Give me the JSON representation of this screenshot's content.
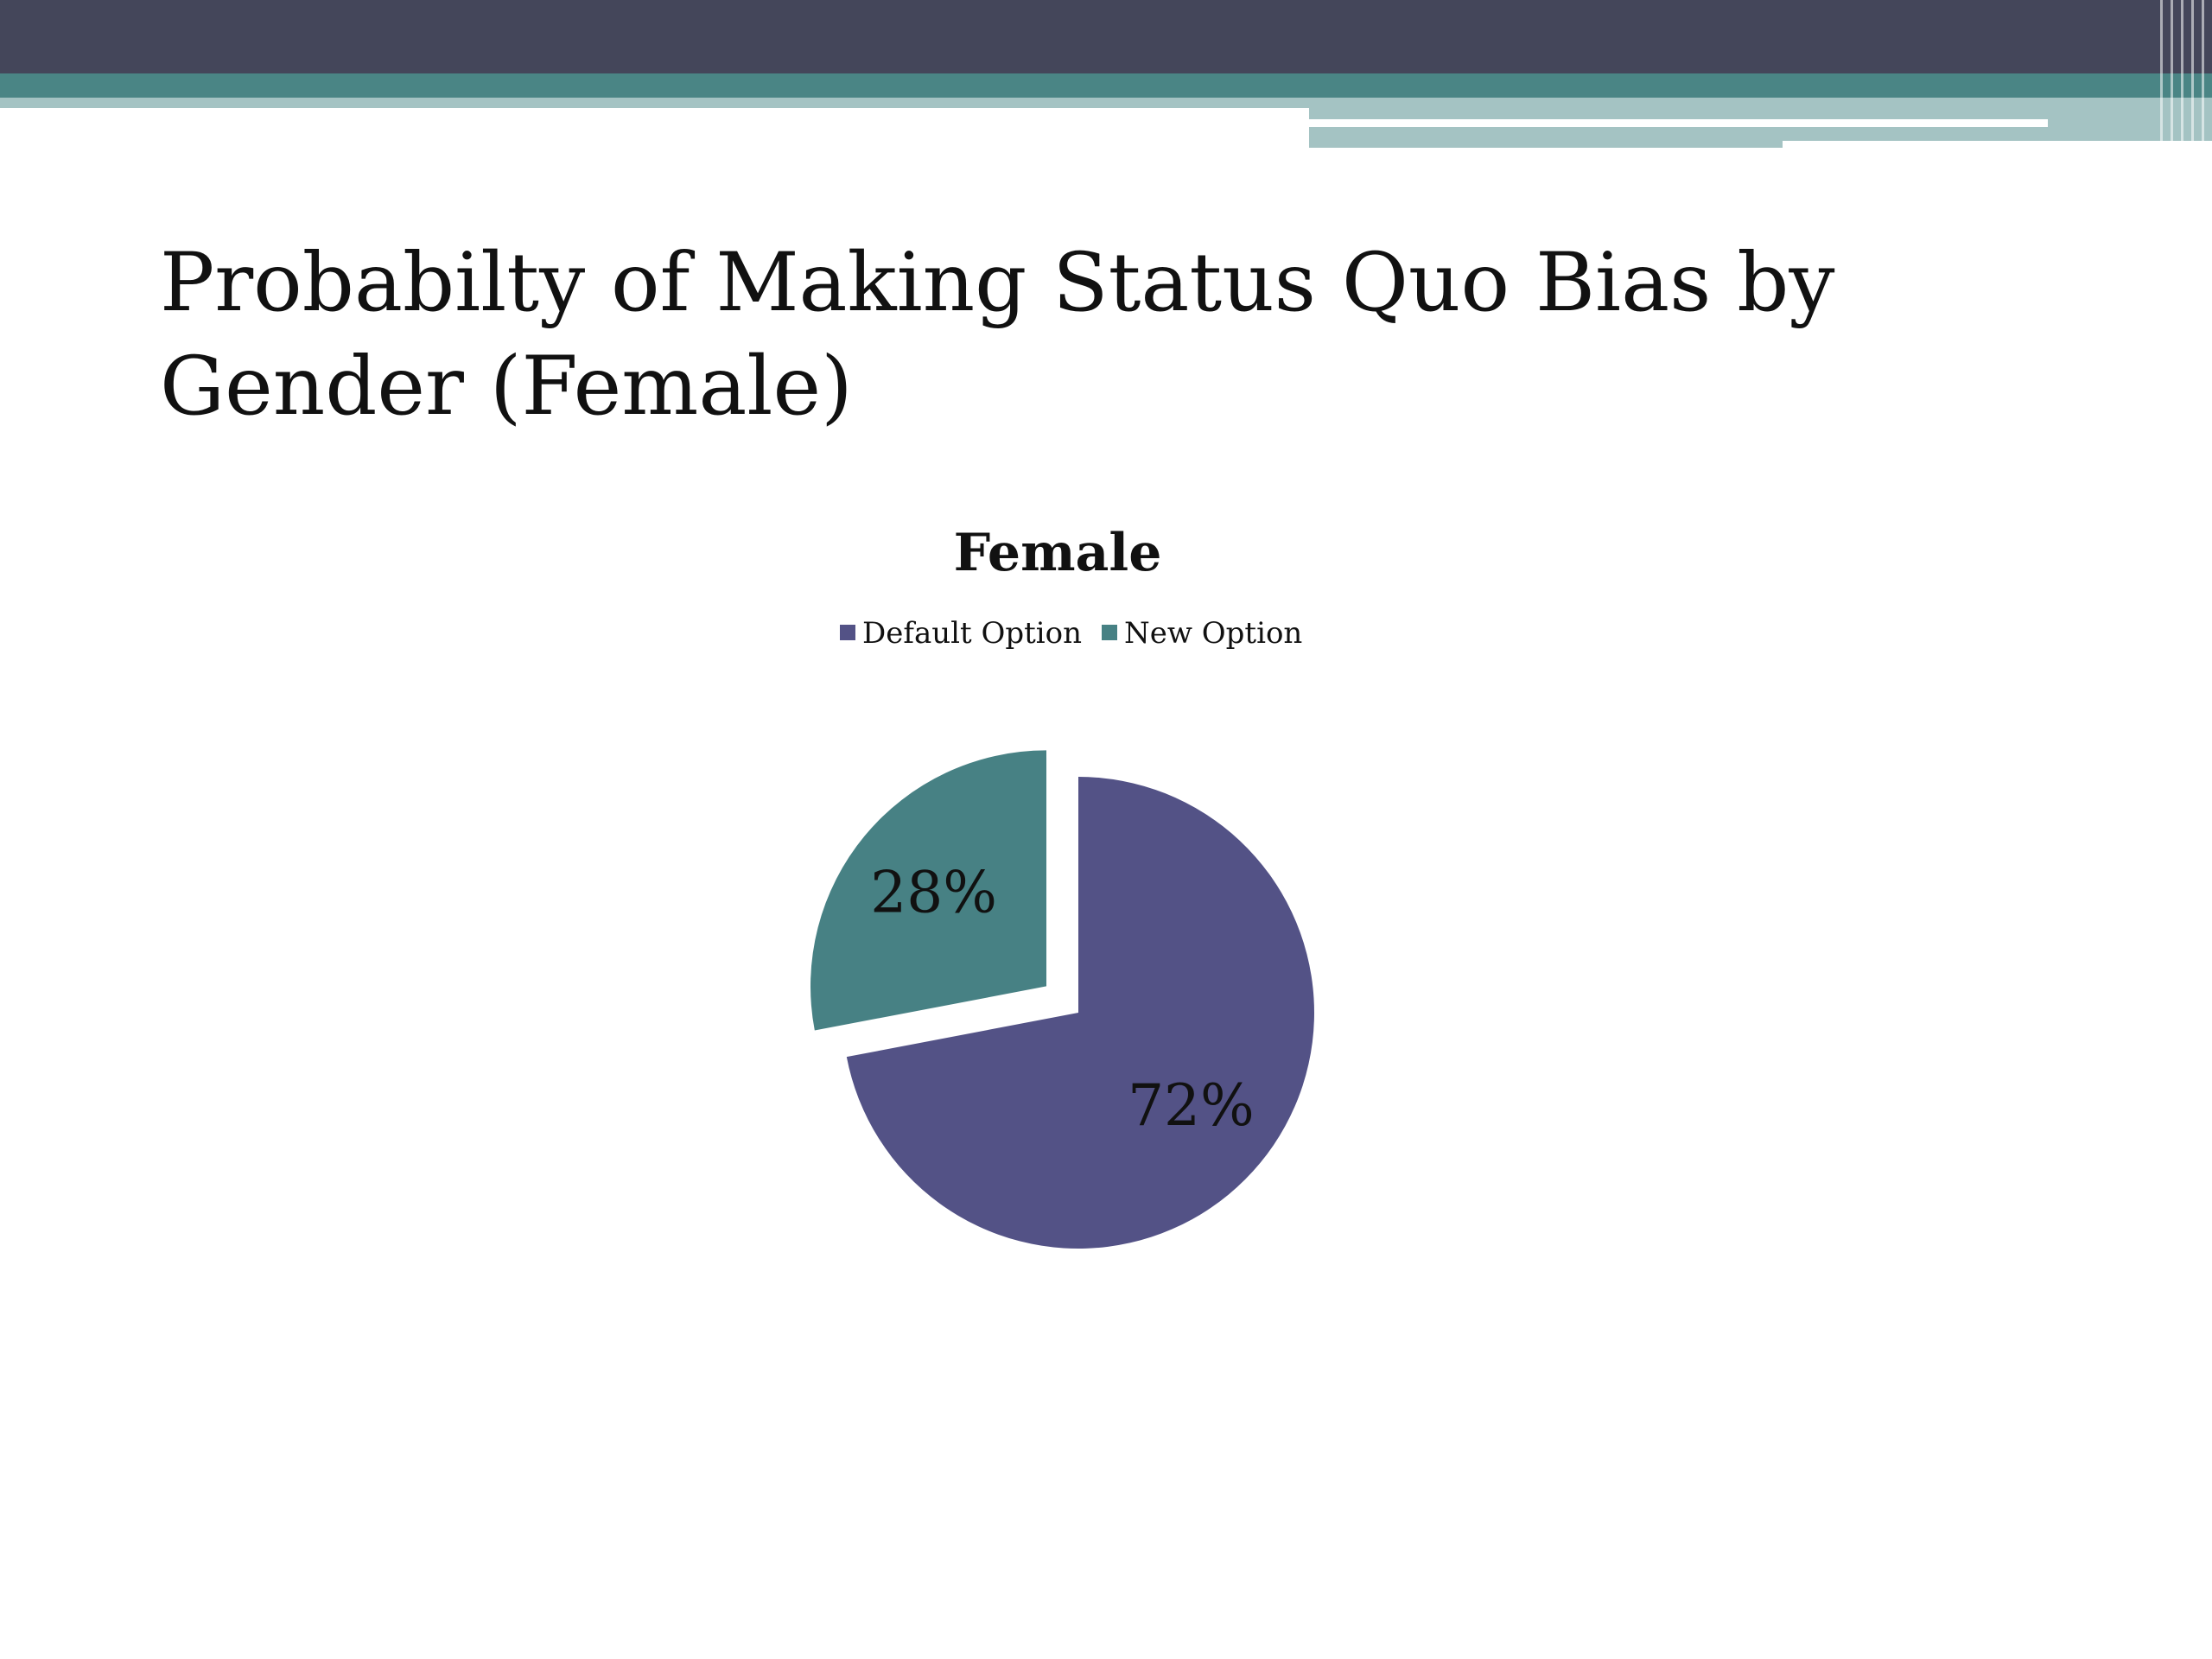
{
  "slide": {
    "title": "Probabilty of Making Status Quo Bias by Gender (Female)"
  },
  "theme": {
    "header_dark": "#44465a",
    "header_teal": "#4a8585",
    "header_light": "#a4c3c3"
  },
  "chart_data": {
    "type": "pie",
    "title": "Female",
    "legend_position": "top",
    "slices": [
      {
        "name": "Default Option",
        "value": 72,
        "label": "72%",
        "color": "#535286",
        "exploded": false
      },
      {
        "name": "New Option",
        "value": 28,
        "label": "28%",
        "color": "#478184",
        "exploded": true
      }
    ]
  }
}
